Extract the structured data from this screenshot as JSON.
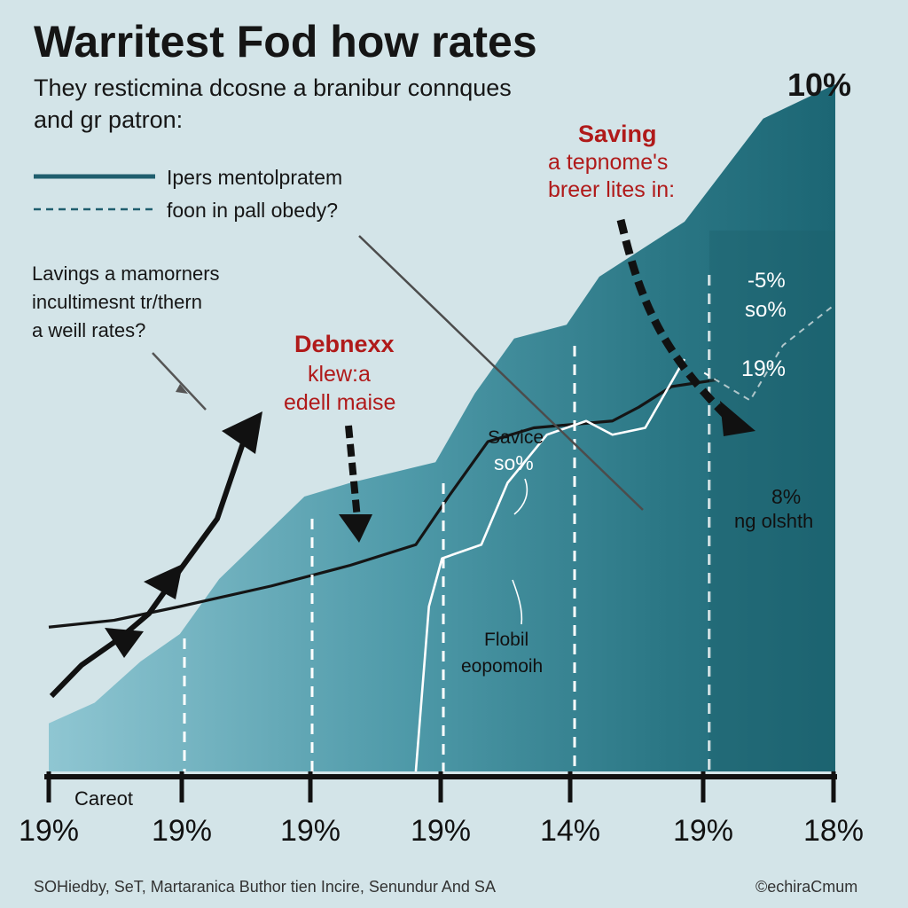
{
  "title": "Warritest Fod how rates",
  "subtitle_line1": "They resticmina dcosne a branibur connques",
  "subtitle_line2": "and gr patron:",
  "top_right_label": "10%",
  "legend": [
    {
      "label": "Ipers mentolpratem",
      "style": "solid",
      "color": "#1f5e6e"
    },
    {
      "label": "foon in pall obedy?",
      "style": "dashed",
      "color": "#1f5e6e"
    }
  ],
  "left_note": [
    "Lavings a mamorners",
    "incultimesnt tr/thern",
    "a weill rates?"
  ],
  "callouts": {
    "debnex": {
      "title": "Debnexx",
      "line1": "klew:a",
      "line2": "edell maise"
    },
    "saving": {
      "title": "Saving",
      "line1": "a tepnome's",
      "line2": "breer lites in:"
    },
    "savice": {
      "line1": "Savice",
      "line2": "so%"
    },
    "right_pct": {
      "line1": "-5%",
      "line2": "so%",
      "line3": "19%"
    },
    "eight": {
      "line1": "8%",
      "line2": "ng olshth"
    },
    "flobil": {
      "line1": "Flobil",
      "line2": "eopomoih"
    }
  },
  "axis_category_label": "Careot",
  "footer_left": "SOHiedby, SeT, Martaranica Buthor tien Incire, Senundur And SA",
  "footer_right": "©echiraCmum",
  "colors": {
    "background": "#d3e4e8",
    "area_light": "#8cc3cf",
    "area_dark": "#23707d",
    "line_dark": "#151515",
    "line_white": "#ffffff",
    "accent_red": "#b01a1a"
  },
  "chart_data": {
    "type": "area",
    "title": "Warritest Fod how rates",
    "x_tick_labels": [
      "19%",
      "19%",
      "19%",
      "19%",
      "14%",
      "19%",
      "18%"
    ],
    "ylim": [
      0,
      100
    ],
    "series": [
      {
        "name": "area",
        "x": [
          0,
          0.35,
          0.7,
          1.0,
          1.3,
          1.95,
          2.3,
          2.95,
          3.25,
          3.55,
          3.95,
          4.2,
          4.85,
          5.45,
          6.0
        ],
        "values": [
          7,
          10,
          16,
          20,
          28,
          40,
          42,
          45,
          55,
          63,
          65,
          72,
          80,
          95,
          100
        ]
      },
      {
        "name": "Ipers mentolpratem",
        "x": [
          0,
          0.5,
          1.0,
          1.7,
          2.3,
          2.8,
          3.05,
          3.35,
          3.7,
          4.3,
          4.5,
          4.75,
          5.1
        ],
        "values": [
          21,
          22,
          24,
          27,
          30,
          33,
          40,
          48,
          50,
          51,
          53,
          56,
          57
        ]
      },
      {
        "name": "curve",
        "x": [
          2.8,
          2.9,
          3.0,
          3.3,
          3.5,
          3.8,
          4.1,
          4.3,
          4.55,
          4.85
        ],
        "values": [
          0,
          24,
          31,
          33,
          42,
          49,
          51,
          49,
          50,
          60
        ]
      },
      {
        "name": "foon in pall obedy?",
        "x": [
          5.0,
          5.35,
          5.6,
          6.0
        ],
        "values": [
          58,
          54,
          62,
          68
        ]
      }
    ]
  }
}
